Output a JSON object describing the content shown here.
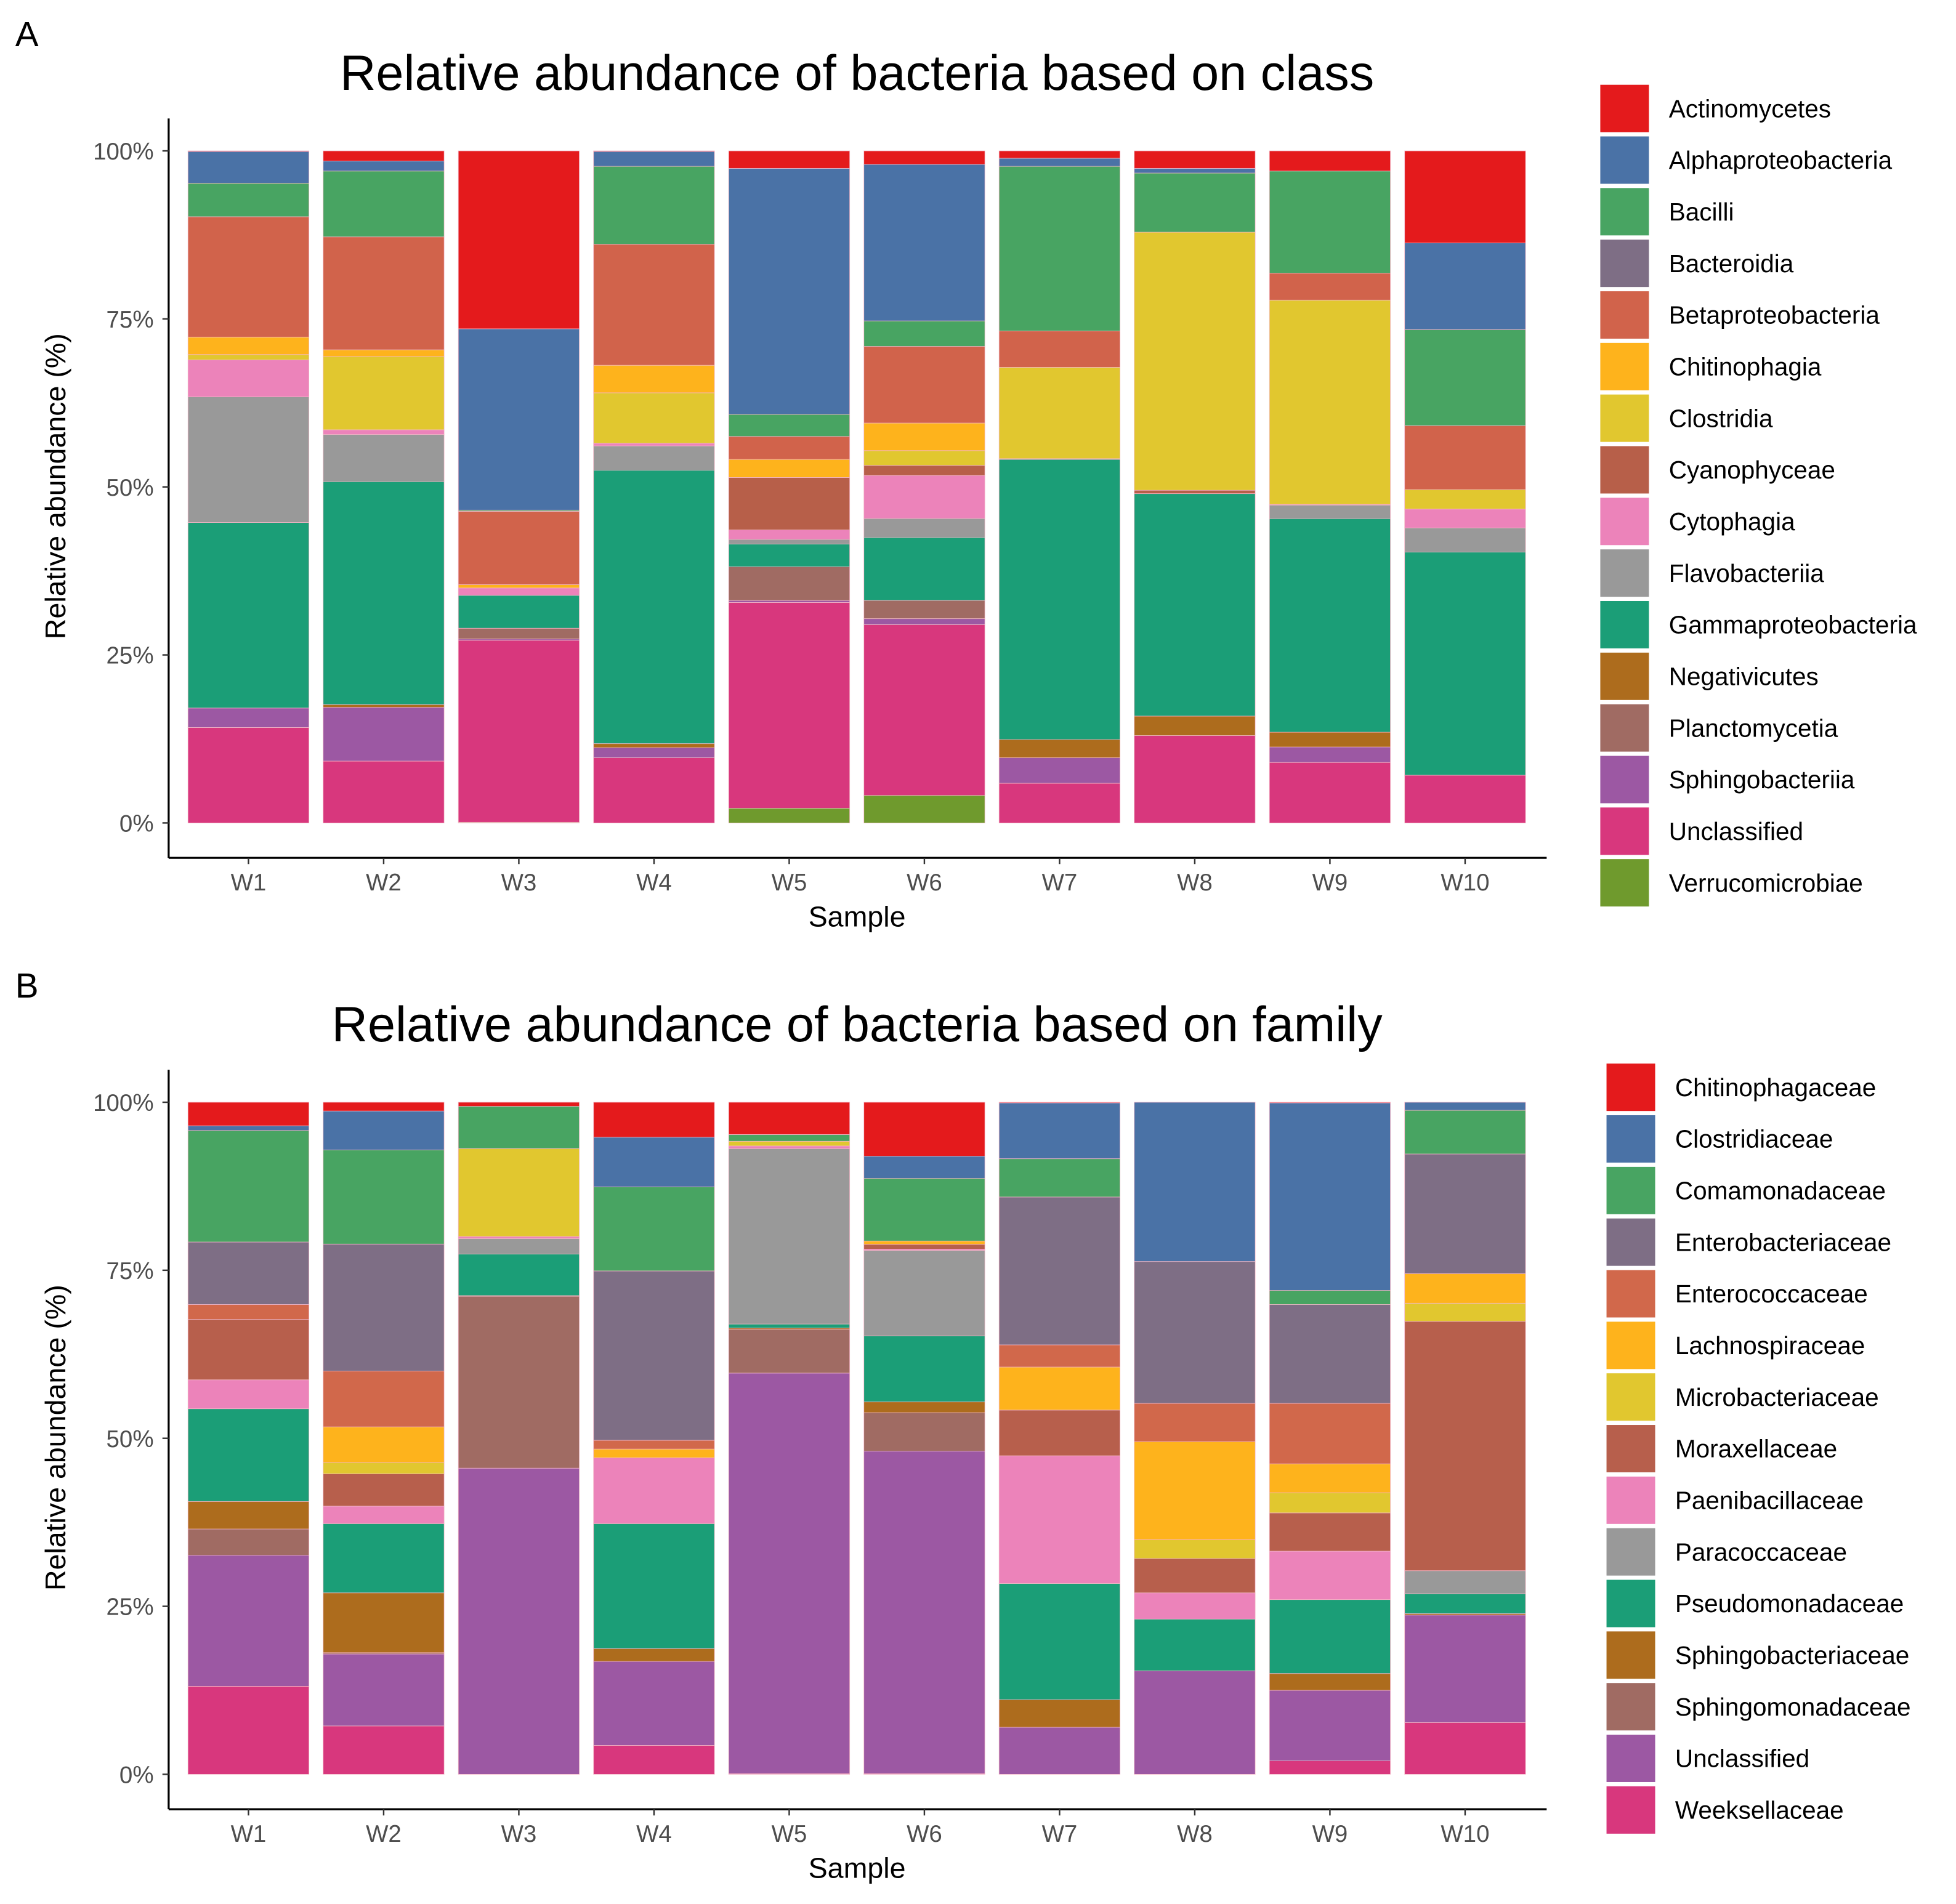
{
  "chart_data": [
    {
      "type": "bar",
      "stacked": true,
      "panel": "A",
      "title": "Relative abundance of bacteria based on class",
      "xlabel": "Sample",
      "ylabel": "Relative abundance (%)",
      "ylim": [
        0,
        100
      ],
      "yticks": [
        "0%",
        "25%",
        "50%",
        "75%",
        "100%"
      ],
      "legend_position": "right",
      "categories": [
        "W1",
        "W2",
        "W3",
        "W4",
        "W5",
        "W6",
        "W7",
        "W8",
        "W9",
        "W10"
      ],
      "series": [
        {
          "name": "Actinomycetes",
          "color": "#E41A1C",
          "values": [
            0.1,
            1.5,
            26.5,
            0.1,
            2.6,
            2.0,
            1.1,
            2.6,
            3.0,
            13.7
          ]
        },
        {
          "name": "Alphaproteobacteria",
          "color": "#4A72A6",
          "values": [
            4.7,
            1.5,
            27.0,
            2.2,
            36.6,
            23.3,
            1.2,
            0.7,
            0,
            12.9
          ]
        },
        {
          "name": "Bacilli",
          "color": "#48A462",
          "values": [
            5.0,
            9.8,
            0.2,
            11.6,
            3.3,
            3.8,
            24.5,
            8.8,
            15.2,
            14.3
          ]
        },
        {
          "name": "Bacteroidia",
          "color": "#7E6E85",
          "values": [
            0,
            0,
            0,
            0,
            0,
            0,
            0,
            0,
            0,
            0
          ]
        },
        {
          "name": "Betaproteobacteria",
          "color": "#D1634B",
          "values": [
            17.9,
            16.8,
            10.9,
            18.0,
            3.4,
            11.4,
            5.4,
            0,
            4.0,
            9.5
          ]
        },
        {
          "name": "Chitinophagia",
          "color": "#FEB31C",
          "values": [
            2.6,
            1.0,
            0.5,
            4.1,
            2.7,
            4.1,
            0,
            0,
            0,
            0
          ]
        },
        {
          "name": "Clostridia",
          "color": "#E1C72F",
          "values": [
            0.8,
            10.9,
            0,
            7.5,
            0,
            2.2,
            13.6,
            38.4,
            30.4,
            2.9
          ]
        },
        {
          "name": "Cyanophyceae",
          "color": "#B75F49",
          "values": [
            0,
            0,
            0,
            0,
            7.8,
            1.5,
            0,
            0.5,
            0,
            0
          ]
        },
        {
          "name": "Cytophagia",
          "color": "#EC83BA",
          "values": [
            5.5,
            0.7,
            1.1,
            0.4,
            1.4,
            6.4,
            0.1,
            0,
            0.1,
            2.8
          ]
        },
        {
          "name": "Flavobacteriia",
          "color": "#999999",
          "values": [
            18.7,
            7.0,
            0,
            3.6,
            0.7,
            2.8,
            0,
            0,
            2.0,
            3.6
          ]
        },
        {
          "name": "Gammaproteobacteria",
          "color": "#1B9E77",
          "values": [
            27.6,
            33.2,
            4.9,
            40.7,
            3.4,
            9.4,
            41.7,
            33.1,
            31.8,
            33.2
          ]
        },
        {
          "name": "Negativicutes",
          "color": "#AD6C1D",
          "values": [
            0,
            0.4,
            0,
            0.6,
            0,
            0,
            2.7,
            2.9,
            2.2,
            0
          ]
        },
        {
          "name": "Planctomycetia",
          "color": "#A06B63",
          "values": [
            0,
            0,
            1.6,
            0,
            5.0,
            2.7,
            0,
            0,
            0,
            0
          ]
        },
        {
          "name": "Sphingobacteriia",
          "color": "#9C58A3",
          "values": [
            2.9,
            8.0,
            0.2,
            1.5,
            0.3,
            0.9,
            3.8,
            0,
            2.3,
            0
          ]
        },
        {
          "name": "Unclassified",
          "color": "#D8377D",
          "values": [
            14.2,
            9.2,
            27.1,
            9.7,
            30.6,
            25.4,
            5.9,
            13.0,
            9.0,
            7.1
          ]
        },
        {
          "name": "Verrucomicrobiae",
          "color": "#6F9A2D",
          "values": [
            0,
            0,
            0.1,
            0,
            2.2,
            4.1,
            0,
            0,
            0,
            0
          ]
        }
      ]
    },
    {
      "type": "bar",
      "stacked": true,
      "panel": "B",
      "title": "Relative abundance of bacteria based on family",
      "xlabel": "Sample",
      "ylabel": "Relative abundance (%)",
      "ylim": [
        0,
        100
      ],
      "yticks": [
        "0%",
        "25%",
        "50%",
        "75%",
        "100%"
      ],
      "legend_position": "right",
      "categories": [
        "W1",
        "W2",
        "W3",
        "W4",
        "W5",
        "W6",
        "W7",
        "W8",
        "W9",
        "W10"
      ],
      "series": [
        {
          "name": "Chitinophagaceae",
          "color": "#E41A1C",
          "values": [
            3.5,
            1.3,
            0.6,
            5.2,
            4.8,
            8.0,
            0.1,
            0,
            0.1,
            0
          ]
        },
        {
          "name": "Clostridiaceae",
          "color": "#4A72A6",
          "values": [
            0.7,
            5.8,
            0,
            7.4,
            0,
            3.3,
            8.3,
            23.7,
            27.9,
            1.2
          ]
        },
        {
          "name": "Comamonadaceae",
          "color": "#48A462",
          "values": [
            16.6,
            14.0,
            6.3,
            12.5,
            1.0,
            9.3,
            5.7,
            0,
            2.1,
            6.5
          ]
        },
        {
          "name": "Enterobacteriaceae",
          "color": "#7E6E85",
          "values": [
            9.3,
            18.9,
            0,
            25.2,
            0,
            0,
            22.0,
            21.1,
            14.7,
            17.8
          ]
        },
        {
          "name": "Enterococcaceae",
          "color": "#D1684B",
          "values": [
            2.2,
            8.3,
            0,
            1.3,
            0,
            0,
            3.3,
            5.7,
            9.0,
            0
          ]
        },
        {
          "name": "Lachnospiraceae",
          "color": "#FEB31C",
          "values": [
            0,
            5.3,
            0,
            1.3,
            0,
            0.5,
            6.4,
            14.6,
            4.3,
            4.4
          ]
        },
        {
          "name": "Microbacteriaceae",
          "color": "#E1C72F",
          "values": [
            0,
            1.7,
            13.1,
            0,
            0.7,
            0,
            0,
            2.8,
            3.0,
            2.7
          ]
        },
        {
          "name": "Moraxellaceae",
          "color": "#B75F4C",
          "values": [
            9.0,
            4.8,
            0,
            0,
            0,
            0.7,
            6.8,
            5.1,
            5.7,
            37.1
          ]
        },
        {
          "name": "Paenibacillaceae",
          "color": "#EC83BA",
          "values": [
            4.3,
            2.6,
            0.3,
            9.8,
            0.4,
            0.2,
            19.0,
            3.9,
            7.2,
            0
          ]
        },
        {
          "name": "Paracoccaceae",
          "color": "#999999",
          "values": [
            0,
            0,
            2.3,
            0,
            26.1,
            12.7,
            0,
            0,
            0,
            3.4
          ]
        },
        {
          "name": "Pseudomonadaceae",
          "color": "#1B9E77",
          "values": [
            13.8,
            10.3,
            6.2,
            18.6,
            0.6,
            9.8,
            17.3,
            7.7,
            11.0,
            3.0
          ]
        },
        {
          "name": "Sphingobacteriaceae",
          "color": "#AD6C1D",
          "values": [
            4.1,
            8.9,
            0.1,
            1.9,
            0.2,
            1.6,
            4.1,
            0,
            2.5,
            0.2
          ]
        },
        {
          "name": "Sphingomonadaceae",
          "color": "#A06B63",
          "values": [
            3.9,
            0.2,
            25.6,
            0,
            6.5,
            5.7,
            0,
            0,
            0,
            0
          ]
        },
        {
          "name": "Unclassified",
          "color": "#9C58A3",
          "values": [
            19.5,
            10.7,
            45.6,
            12.5,
            59.6,
            47.9,
            7.0,
            15.4,
            10.5,
            16.0
          ]
        },
        {
          "name": "Weeksellaceae",
          "color": "#D8377D",
          "values": [
            13.1,
            7.2,
            0,
            4.3,
            0.1,
            0.1,
            0,
            0,
            2.0,
            7.7
          ]
        }
      ]
    }
  ]
}
